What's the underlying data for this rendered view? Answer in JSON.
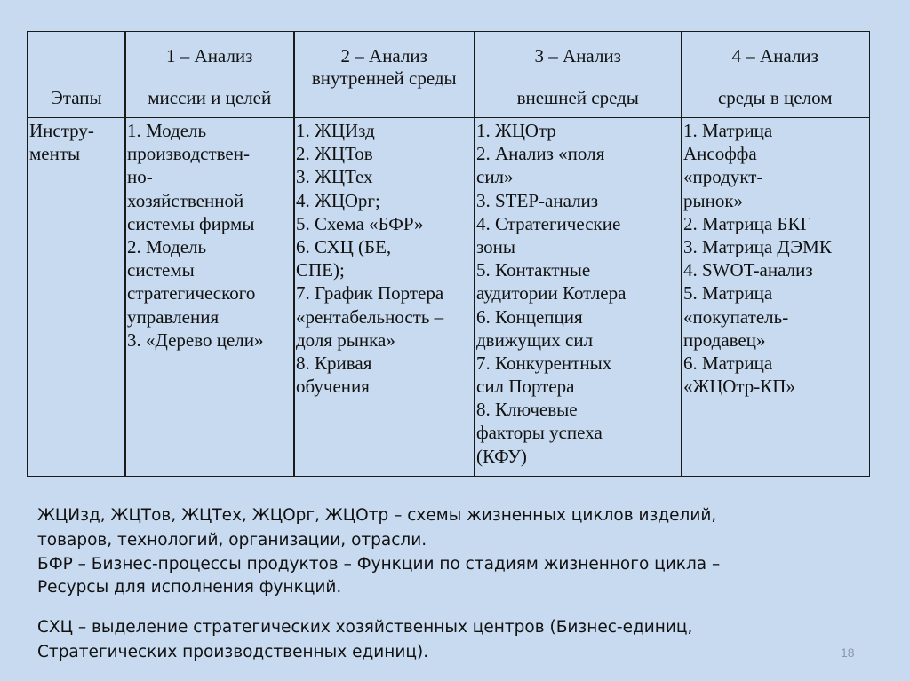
{
  "table": {
    "headers": [
      {
        "lines": [
          "Этапы"
        ]
      },
      {
        "lines": [
          "1 – Анализ",
          "миссии и целей"
        ]
      },
      {
        "lines": [
          "2 – Анализ",
          "внутренней среды"
        ]
      },
      {
        "lines": [
          "3 – Анализ",
          "внешней среды"
        ]
      },
      {
        "lines": [
          "4 – Анализ",
          "среды в целом"
        ]
      }
    ],
    "row": [
      {
        "lines": [
          "Инстру-",
          "менты"
        ]
      },
      {
        "lines": [
          "1. Модель",
          "производствен-",
          "но-",
          "хозяйственной",
          "системы фирмы",
          "2. Модель",
          "системы",
          "стратегического",
          "управления",
          "3. «Дерево цели»"
        ]
      },
      {
        "lines": [
          "1. ЖЦИзд",
          "2. ЖЦТов",
          "3. ЖЦТех",
          "4. ЖЦОрг;",
          "5. Схема «БФР»",
          "6. СХЦ (БЕ,",
          "СПЕ);",
          "7. График Портера",
          "«рентабельность –",
          "доля рынка»",
          "8. Кривая",
          "обучения"
        ]
      },
      {
        "lines": [
          "1. ЖЦОтр",
          "2. Анализ «поля",
          "сил»",
          "3. STEP-анализ",
          "4. Стратегические",
          "зоны",
          "5. Контактные",
          "аудитории Котлера",
          "6. Концепция",
          "движущих сил",
          "7. Конкурентных",
          "сил Портера",
          "8. Ключевые",
          "факторы успеха",
          "(КФУ)"
        ]
      },
      {
        "lines": [
          "1. Матрица",
          "Ансоффа",
          "«продукт-",
          "рынок»",
          "2. Матрица БКГ",
          "3. Матрица ДЭМК",
          "4. SWOT-анализ",
          "5. Матрица",
          "«покупатель-",
          "продавец»",
          "6. Матрица",
          "«ЖЦОтр-КП»"
        ]
      }
    ]
  },
  "notes": [
    "ЖЦИзд, ЖЦТов, ЖЦТех, ЖЦОрг, ЖЦОтр – схемы жизненных циклов изделий,",
    "товаров, технологий, организации, отрасли.",
    "БФР – Бизнес-процессы продуктов – Функции по стадиям жизненного цикла –",
    "Ресурсы для исполнения функций.",
    "СХЦ – выделение стратегических хозяйственных центров (Бизнес-единиц,",
    "Стратегических производственных единиц)."
  ],
  "page_number": "18"
}
